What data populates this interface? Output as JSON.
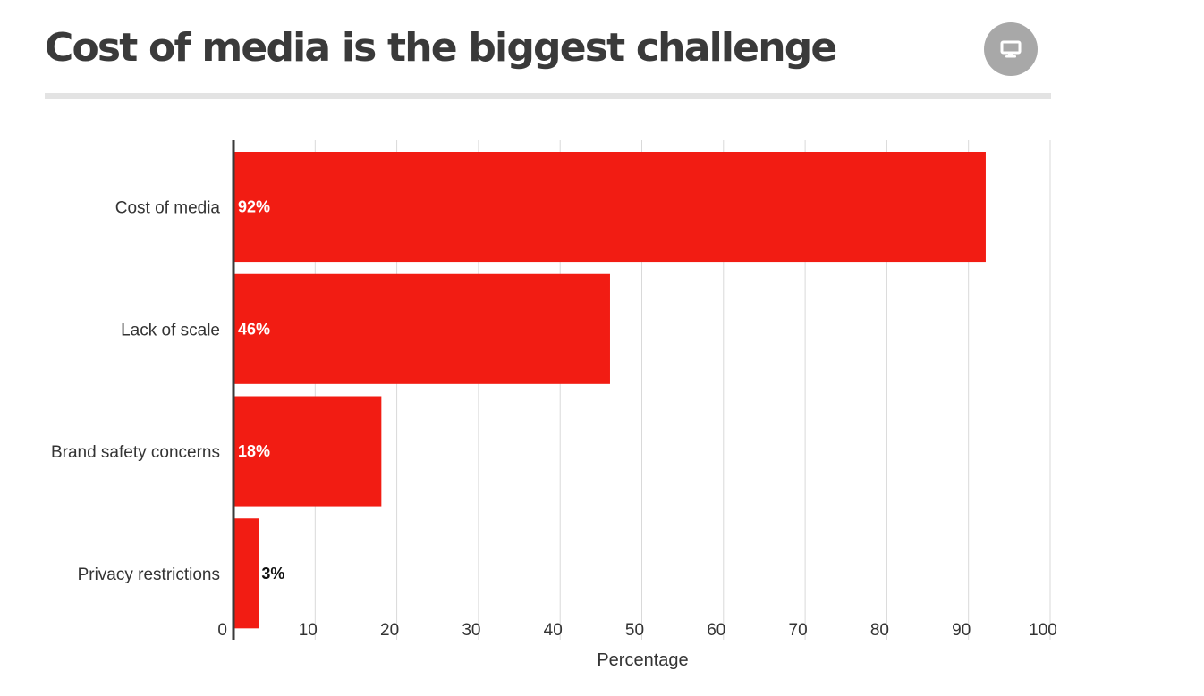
{
  "header": {
    "title": "Cost of media is the biggest challenge",
    "display_icon": "monitor-icon"
  },
  "chart_data": {
    "type": "bar",
    "orientation": "horizontal",
    "title": "Cost of media is the biggest challenge",
    "categories": [
      "Cost of media",
      "Lack of scale",
      "Brand safety concerns",
      "Privacy restrictions"
    ],
    "values": [
      92,
      46,
      18,
      3
    ],
    "value_labels": [
      "92%",
      "46%",
      "18%",
      "3%"
    ],
    "xlabel": "Percentage",
    "ylabel": "",
    "xlim": [
      0,
      100
    ],
    "xticks": [
      0,
      10,
      20,
      30,
      40,
      50,
      60,
      70,
      80,
      90,
      100
    ],
    "grid": true,
    "bar_color": "#f21c13"
  }
}
